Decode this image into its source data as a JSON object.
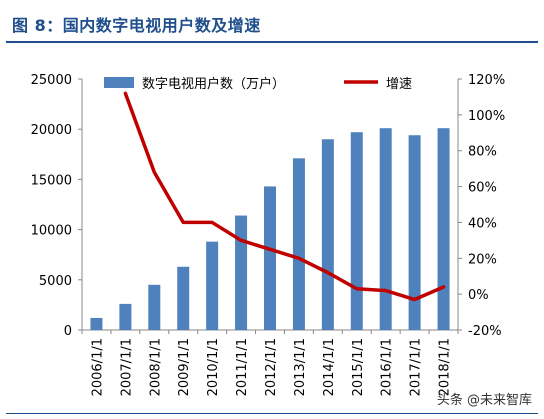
{
  "figure": {
    "title": "图 8：国内数字电视用户数及增速",
    "watermark": "头条 @未来智库"
  },
  "chart_data": {
    "type": "bar+line",
    "categories": [
      "2006/1/1",
      "2007/1/1",
      "2008/1/1",
      "2009/1/1",
      "2010/1/1",
      "2011/1/1",
      "2012/1/1",
      "2013/1/1",
      "2014/1/1",
      "2015/1/1",
      "2016/1/1",
      "2017/1/1",
      "2018/1/1"
    ],
    "series": [
      {
        "name": "数字电视用户数（万户）",
        "type": "bar",
        "axis": "left",
        "color": "#4f81bd",
        "values": [
          1200,
          2600,
          4500,
          6300,
          8800,
          11400,
          14300,
          17100,
          19000,
          19700,
          20100,
          19400,
          20100
        ]
      },
      {
        "name": "增速",
        "type": "line",
        "axis": "right",
        "color": "#c00000",
        "values": [
          null,
          112,
          68,
          40,
          40,
          30,
          25,
          20,
          12,
          3,
          2,
          -3,
          4
        ]
      }
    ],
    "y_left": {
      "min": 0,
      "max": 25000,
      "ticks": [
        "0",
        "5000",
        "10000",
        "15000",
        "20000",
        "25000"
      ]
    },
    "y_right": {
      "min": -20,
      "max": 120,
      "ticks": [
        "-20%",
        "0%",
        "20%",
        "40%",
        "60%",
        "80%",
        "100%",
        "120%"
      ]
    },
    "grid": false,
    "legend": "top"
  }
}
